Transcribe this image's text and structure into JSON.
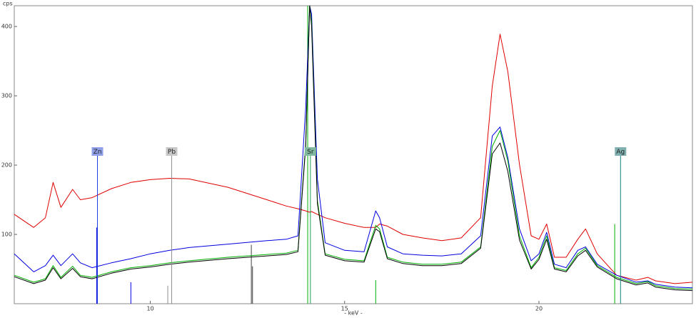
{
  "chart_data": {
    "type": "line",
    "y_label": "cps",
    "x_label": "- keV -",
    "xlim": [
      6.5,
      23.95
    ],
    "ylim": [
      0,
      430
    ],
    "xticks": [
      10,
      15,
      20
    ],
    "yticks": [
      100,
      200,
      300,
      400
    ],
    "x": [
      6.5,
      7.0,
      7.3,
      7.5,
      7.7,
      8.0,
      8.2,
      8.5,
      9.0,
      9.5,
      10.0,
      10.5,
      11.0,
      12.0,
      13.0,
      13.5,
      13.8,
      14.0,
      14.1,
      14.15,
      14.3,
      14.5,
      15.0,
      15.5,
      15.8,
      15.9,
      16.1,
      16.5,
      17.0,
      17.5,
      18.0,
      18.5,
      18.8,
      19.0,
      19.2,
      19.5,
      19.8,
      20.0,
      20.2,
      20.4,
      20.7,
      21.0,
      21.2,
      21.5,
      22.0,
      22.5,
      22.8,
      23.0,
      23.5,
      23.95
    ],
    "series": [
      {
        "color": "#e00000",
        "values": [
          129,
          110,
          124,
          175,
          139,
          165,
          150,
          153,
          166,
          175,
          179,
          181,
          180,
          168,
          150,
          141,
          137,
          134,
          132,
          133,
          129,
          124,
          116,
          110,
          110,
          115,
          112,
          100,
          95,
          91,
          95,
          124,
          314,
          389,
          335,
          201,
          98,
          93,
          115,
          67,
          67,
          93,
          108,
          72,
          41,
          34,
          38,
          33,
          29,
          31
        ]
      },
      {
        "color": "#0000e0",
        "values": [
          72,
          46,
          55,
          70,
          55,
          72,
          59,
          52,
          59,
          65,
          72,
          77,
          81,
          86,
          91,
          93,
          98,
          284,
          430,
          418,
          180,
          88,
          77,
          75,
          134,
          124,
          82,
          72,
          70,
          69,
          72,
          98,
          242,
          255,
          211,
          108,
          62,
          72,
          103,
          57,
          52,
          77,
          82,
          57,
          41,
          31,
          33,
          28,
          24,
          23
        ]
      },
      {
        "color": "#00b000",
        "values": [
          41,
          31,
          36,
          55,
          38,
          54,
          41,
          38,
          46,
          52,
          55,
          59,
          62,
          67,
          71,
          73,
          77,
          232,
          430,
          407,
          149,
          72,
          64,
          62,
          113,
          108,
          67,
          60,
          57,
          57,
          60,
          82,
          227,
          250,
          206,
          98,
          52,
          67,
          98,
          52,
          48,
          72,
          80,
          55,
          38,
          29,
          32,
          26,
          22,
          21
        ]
      },
      {
        "color": "#000000",
        "values": [
          39,
          29,
          34,
          52,
          36,
          51,
          39,
          36,
          44,
          50,
          53,
          57,
          60,
          65,
          69,
          71,
          75,
          228,
          430,
          400,
          145,
          70,
          62,
          60,
          108,
          104,
          65,
          58,
          55,
          55,
          58,
          80,
          216,
          232,
          191,
          92,
          50,
          64,
          93,
          50,
          46,
          69,
          77,
          53,
          36,
          27,
          30,
          24,
          20,
          19
        ]
      }
    ],
    "markers": [
      {
        "label": "Zn",
        "x": 8.64,
        "color": "#2040e0",
        "label_color": "#8f9fe8"
      },
      {
        "label": "Pb",
        "x": 10.55,
        "color": "#909090",
        "label_color": "#c8c8c8"
      },
      {
        "label": "Sr",
        "x": 14.12,
        "color": "#20a050",
        "label_color": "#80b8a0"
      },
      {
        "label": "Ag",
        "x": 22.1,
        "color": "#108080",
        "label_color": "#80b0b0"
      }
    ],
    "sticks": [
      {
        "x": 8.62,
        "value": 110,
        "color": "#0000e0"
      },
      {
        "x": 9.5,
        "value": 31,
        "color": "#0000e0"
      },
      {
        "x": 10.45,
        "value": 26,
        "color": "#909090"
      },
      {
        "x": 12.6,
        "value": 85,
        "color": "#404040"
      },
      {
        "x": 12.63,
        "value": 54,
        "color": "#404040"
      },
      {
        "x": 14.05,
        "value": 430,
        "color": "#00b000"
      },
      {
        "x": 15.8,
        "value": 34,
        "color": "#00b000"
      },
      {
        "x": 21.95,
        "value": 115,
        "color": "#00b000"
      }
    ]
  }
}
